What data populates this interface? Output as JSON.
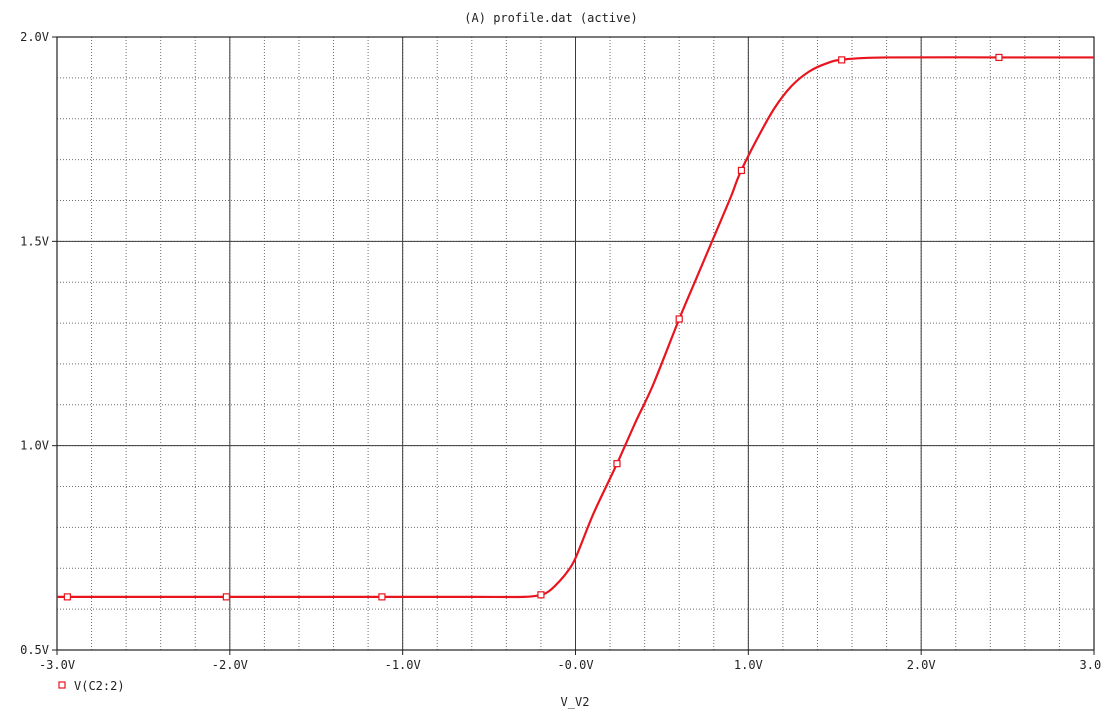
{
  "chart_data": {
    "type": "line",
    "title": "(A) profile.dat (active)",
    "xlabel": "V_V2",
    "ylabel": "",
    "xlim": [
      -3.0,
      3.0
    ],
    "ylim": [
      0.5,
      2.0
    ],
    "x_ticks": [
      -3.0,
      -2.0,
      -1.0,
      0.0,
      1.0,
      2.0,
      3.0
    ],
    "x_tick_labels": [
      "-3.0V",
      "-2.0V",
      "-1.0V",
      "-0.0V",
      "1.0V",
      "2.0V",
      "3.0V"
    ],
    "y_ticks": [
      0.5,
      1.0,
      1.5,
      2.0
    ],
    "y_tick_labels": [
      "0.5V",
      "1.0V",
      "1.5V",
      "2.0V"
    ],
    "grid": true,
    "grid_minor_x_step": 0.2,
    "grid_minor_y_step": 0.1,
    "legend_position": "bottom-left",
    "series": [
      {
        "name": "V(C2:2)",
        "color": "#e8141e",
        "marker": "square",
        "x": [
          -3.0,
          -2.5,
          -2.0,
          -1.5,
          -1.1,
          -0.6,
          -0.3,
          -0.2,
          -0.15,
          -0.1,
          -0.05,
          0.0,
          0.1,
          0.2,
          0.25,
          0.35,
          0.45,
          0.6,
          0.7,
          0.8,
          0.9,
          0.95,
          1.05,
          1.15,
          1.25,
          1.35,
          1.45,
          1.55,
          1.8,
          2.5,
          3.0
        ],
        "y": [
          0.63,
          0.63,
          0.63,
          0.63,
          0.63,
          0.63,
          0.63,
          0.635,
          0.645,
          0.665,
          0.69,
          0.725,
          0.83,
          0.92,
          0.965,
          1.06,
          1.15,
          1.31,
          1.41,
          1.51,
          1.61,
          1.665,
          1.75,
          1.825,
          1.88,
          1.915,
          1.935,
          1.945,
          1.95,
          1.95,
          1.95
        ],
        "marker_x": [
          -2.94,
          -2.02,
          -1.12,
          -0.2,
          0.24,
          0.6,
          0.96,
          1.54,
          2.45
        ]
      }
    ]
  }
}
